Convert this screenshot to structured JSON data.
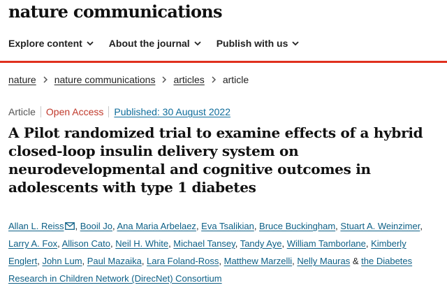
{
  "site": {
    "logo": "nature communications"
  },
  "nav": {
    "items": [
      {
        "label": "Explore content"
      },
      {
        "label": "About the journal"
      },
      {
        "label": "Publish with us"
      }
    ]
  },
  "breadcrumb": {
    "items": [
      "nature",
      "nature communications",
      "articles"
    ],
    "current": "article"
  },
  "article": {
    "type": "Article",
    "access": "Open Access",
    "published": "Published: 30 August 2022",
    "title": "A Pilot randomized trial to examine effects of a hybrid closed-loop insulin delivery system on neurodevelopmental and cognitive outcomes in adolescents with type 1 diabetes",
    "authors": [
      "Allan L. Reiss",
      "Booil Jo",
      "Ana Maria Arbelaez",
      "Eva Tsalikian",
      "Bruce Buckingham",
      "Stuart A. Weinzimer",
      "Larry A. Fox",
      "Allison Cato",
      "Neil H. White",
      "Michael Tansey",
      "Tandy Aye",
      "William Tamborlane",
      "Kimberly Englert",
      "John Lum",
      "Paul Mazaika",
      "Lara Foland-Ross",
      "Matthew Marzelli",
      "Nelly Mauras"
    ],
    "author_joiner": "&",
    "consortium": "the Diabetes Research in Children Network (DirecNet) Consortium"
  },
  "colors": {
    "accent_red": "#e0301e",
    "link_blue": "#0c5f86",
    "open_access": "#c0392b"
  },
  "icons": {
    "nav_dropdown": "chevron-down-icon",
    "breadcrumb_separator": "chevron-right-icon",
    "corresponding_author": "mail-icon"
  }
}
